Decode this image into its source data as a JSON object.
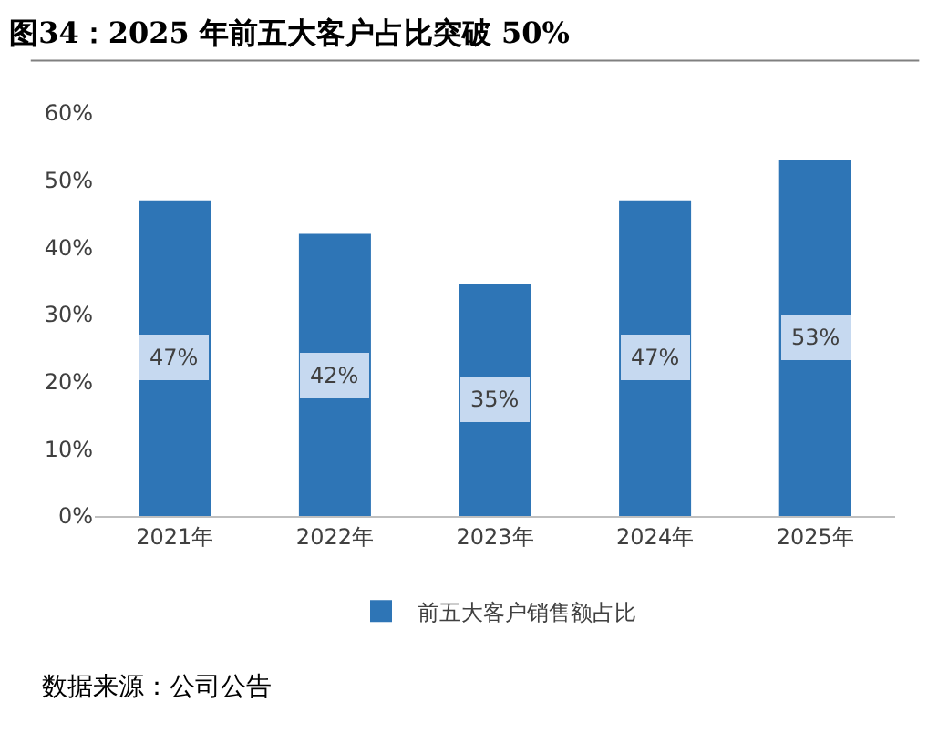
{
  "chart_data": {
    "type": "bar",
    "title": "图34：2025 年前五大客户占比突破 50%",
    "categories": [
      "2021年",
      "2022年",
      "2023年",
      "2024年",
      "2025年"
    ],
    "series": [
      {
        "name": "前五大客户销售额占比",
        "color": "#2e75b6",
        "values": [
          47,
          42,
          34.5,
          47,
          53
        ],
        "value_labels": [
          "47%",
          "42%",
          "35%",
          "47%",
          "53%"
        ]
      }
    ],
    "ylim": [
      0,
      60
    ],
    "yticks": [
      {
        "value": 0,
        "label": "0%"
      },
      {
        "value": 10,
        "label": "10%"
      },
      {
        "value": 20,
        "label": "20%"
      },
      {
        "value": 30,
        "label": "30%"
      },
      {
        "value": 40,
        "label": "40%"
      },
      {
        "value": 50,
        "label": "50%"
      },
      {
        "value": 60,
        "label": "60%"
      }
    ],
    "grid": false,
    "legend": "bottom",
    "annotations": [
      "数据来源：公司公告"
    ]
  }
}
